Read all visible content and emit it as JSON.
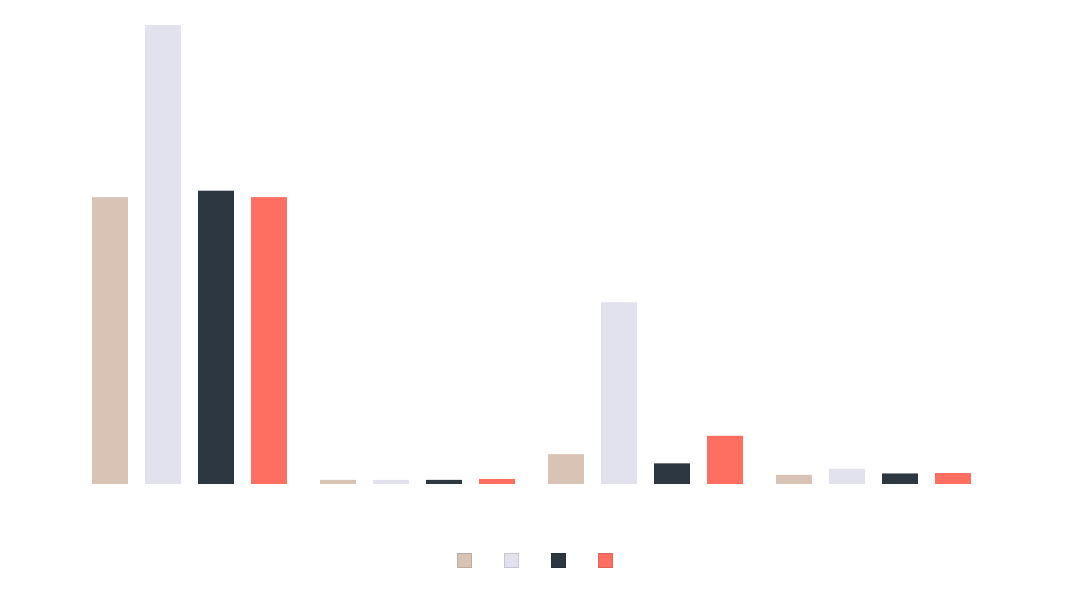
{
  "chart_data": {
    "type": "bar",
    "categories": [
      "",
      "",
      "",
      ""
    ],
    "ylim": [
      0,
      100
    ],
    "grid": false,
    "legend_position": "bottom-center",
    "series": [
      {
        "color": "#D9C3B5",
        "values": [
          62.5,
          0.9,
          6.5,
          2.0
        ]
      },
      {
        "color": "#E2E2EE",
        "values": [
          100.0,
          0.9,
          39.6,
          3.3
        ]
      },
      {
        "color": "#2D3741",
        "values": [
          63.9,
          0.9,
          4.5,
          2.3
        ]
      },
      {
        "color": "#FF6F61",
        "values": [
          62.5,
          1.1,
          10.5,
          2.4
        ]
      }
    ]
  }
}
